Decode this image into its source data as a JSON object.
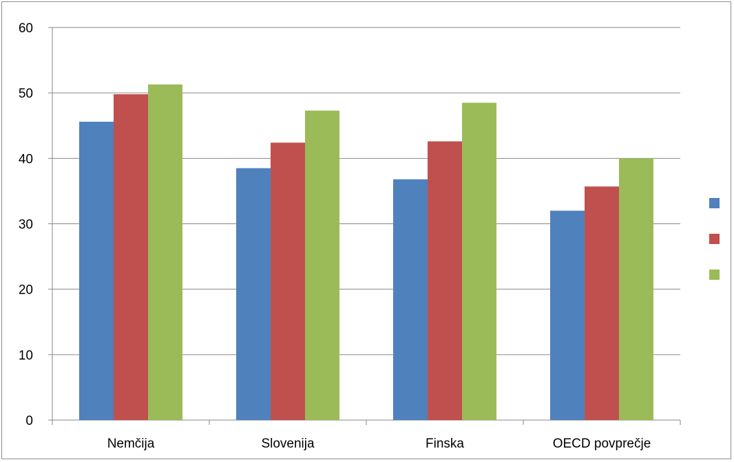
{
  "chart_data": {
    "type": "bar",
    "title": "",
    "xlabel": "",
    "ylabel": "",
    "categories": [
      "Nemčija",
      "Slovenija",
      "Finska",
      "OECD povprečje"
    ],
    "series": [
      {
        "values": [
          45.6,
          38.5,
          36.8,
          32.0
        ],
        "color": "#4f81bd"
      },
      {
        "values": [
          49.8,
          42.4,
          42.6,
          35.7
        ],
        "color": "#c0504d"
      },
      {
        "values": [
          51.3,
          47.3,
          48.5,
          40.0
        ],
        "color": "#9bbb59"
      }
    ],
    "ylim": [
      0,
      60
    ],
    "yticks": [
      0,
      10,
      20,
      30,
      40,
      50,
      60
    ],
    "grid": true,
    "legend": {
      "position": "right",
      "labels": [
        "",
        "",
        ""
      ]
    }
  }
}
